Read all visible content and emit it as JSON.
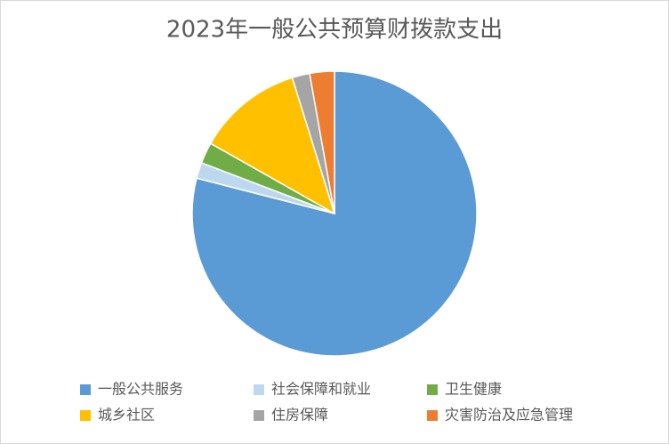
{
  "chart_data": {
    "type": "pie",
    "title": "2023年一般公共预算财拨款支出",
    "categories": [
      "一般公共服务",
      "社会保障和就业",
      "卫生健康",
      "城乡社区",
      "住房保障",
      "灾害防治及应急管理"
    ],
    "values": [
      79,
      1.8,
      2.4,
      12,
      2,
      2.8
    ],
    "colors": [
      "#5b9bd5",
      "#bdd7ee",
      "#70ad47",
      "#ffc000",
      "#a5a5a5",
      "#ed7d31"
    ],
    "legend": "bottom"
  }
}
